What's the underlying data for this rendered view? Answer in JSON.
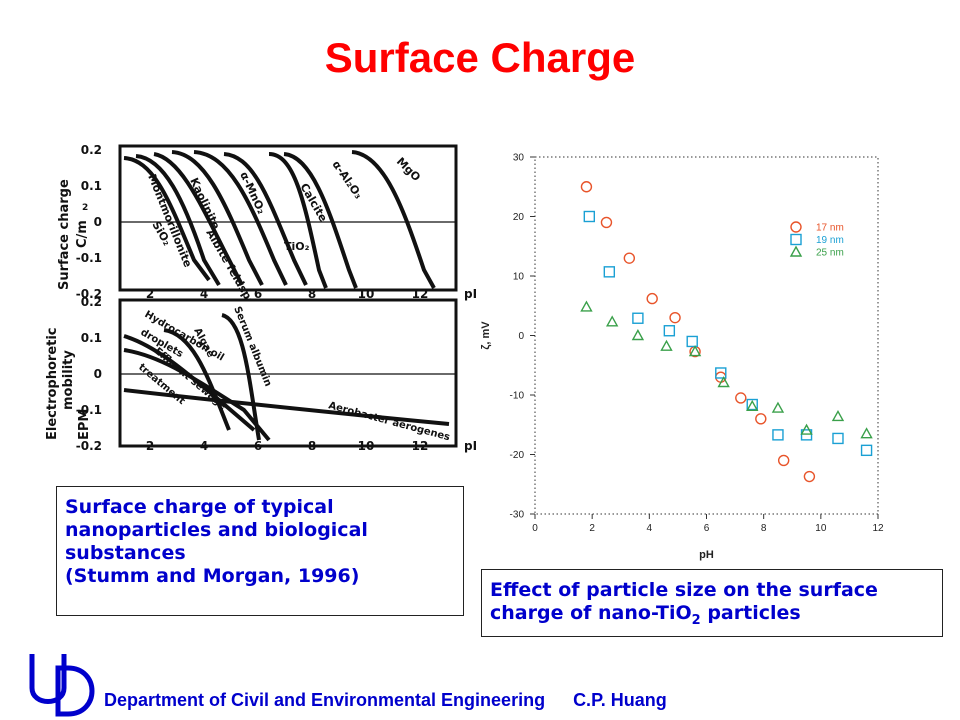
{
  "slide": {
    "title": "Surface Charge",
    "caption_left": [
      "Surface charge of typical",
      "nanoparticles and biological",
      "substances",
      "(Stumm and Morgan, 1996)"
    ],
    "caption_right": [
      "Effect of particle size on the surface",
      "charge of nano-TiO",
      "2",
      " particles"
    ],
    "footer": {
      "department": "Department of Civil and Environmental Engineering",
      "author": "C.P. Huang"
    },
    "accent_colors": {
      "title": "#ff0000",
      "text": "#0000cc"
    }
  },
  "left_figure": {
    "top_panel": {
      "ylabel": [
        "Surface charge",
        "C/m",
        "2"
      ],
      "yticks": [
        "0.2",
        "0.1",
        "0",
        "-0.1",
        "-0.2"
      ],
      "xticks": [
        "2",
        "4",
        "6",
        "8",
        "10",
        "12"
      ],
      "x_unit": "pH",
      "curve_labels": [
        "MgO",
        "α-Al₂O₃",
        "Calcite",
        "α-MnO₂",
        "Kaolinite",
        "Montmorillonite",
        "SiO₂",
        "Albite feldspar",
        "TiO₂"
      ]
    },
    "bottom_panel": {
      "ylabel": [
        "Electrophoretic",
        "mobility",
        "EPM"
      ],
      "yticks": [
        "0.2",
        "0.1",
        "0",
        "-0.1",
        "-0.2"
      ],
      "xticks": [
        "2",
        "4",
        "6",
        "8",
        "10",
        "12"
      ],
      "x_unit": "pH",
      "curve_labels": [
        "Serum albumin",
        "Algae",
        "Hydrocarbon oil",
        "droplets",
        "Effluent sewage",
        "treatment",
        "Aerobacter aerogenes"
      ]
    }
  },
  "chart_data": {
    "type": "scatter",
    "xlabel": "pH",
    "ylabel": "ζ, mV",
    "xlim": [
      0,
      12
    ],
    "ylim": [
      -30,
      30
    ],
    "xticks": [
      0,
      2,
      4,
      6,
      8,
      10,
      12
    ],
    "yticks": [
      30,
      20,
      10,
      0,
      -10,
      -20,
      -30
    ],
    "legend_position": "top-right",
    "series": [
      {
        "name": "17 nm",
        "marker": "circle",
        "color": "#e8542a",
        "x": [
          1.8,
          2.5,
          3.3,
          4.1,
          4.9,
          5.6,
          6.5,
          7.2,
          7.9,
          8.7,
          9.6
        ],
        "y": [
          25,
          19,
          13,
          6.2,
          3,
          -2.7,
          -7,
          -10.5,
          -14,
          -21,
          -23.7
        ]
      },
      {
        "name": "19 nm",
        "marker": "square",
        "color": "#1aa0d4",
        "x": [
          1.9,
          2.6,
          3.6,
          4.7,
          5.5,
          6.5,
          7.6,
          8.5,
          9.5,
          10.6,
          11.6
        ],
        "y": [
          20,
          10.7,
          2.9,
          0.8,
          -1,
          -6.3,
          -11.6,
          -16.7,
          -16.7,
          -17.3,
          -19.3
        ]
      },
      {
        "name": "25 nm",
        "marker": "triangle",
        "color": "#3aa04a",
        "x": [
          1.8,
          2.7,
          3.6,
          4.6,
          5.6,
          6.6,
          7.6,
          8.5,
          9.5,
          10.6,
          11.6
        ],
        "y": [
          4.8,
          2.3,
          0,
          -1.8,
          -2.7,
          -7.9,
          -11.9,
          -12.2,
          -15.9,
          -13.6,
          -16.5
        ]
      }
    ]
  }
}
